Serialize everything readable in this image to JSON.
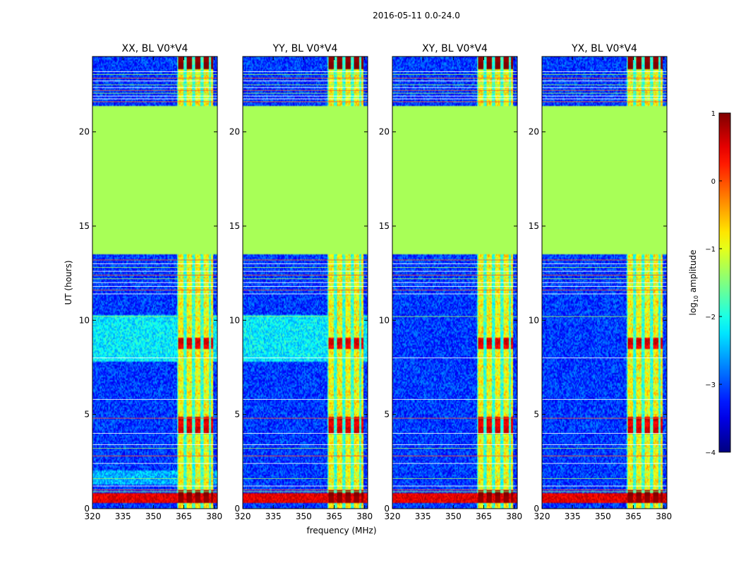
{
  "figure": {
    "suptitle": "2016-05-11 0.0-24.0",
    "ylabel": "UT (hours)",
    "xlabel": "frequency (MHz)"
  },
  "chart_data": {
    "type": "heatmap",
    "title": "2016-05-11 0.0-24.0",
    "xlabel": "frequency (MHz)",
    "ylabel": "UT (hours)",
    "xlim": [
      320,
      381.5
    ],
    "ylim": [
      0,
      24
    ],
    "x_ticks": [
      320,
      335,
      350,
      365,
      380
    ],
    "y_ticks": [
      0,
      5,
      10,
      15,
      20
    ],
    "panels": [
      {
        "title": "XX, BL V0*V4",
        "pol": "XX"
      },
      {
        "title": "YY, BL V0*V4",
        "pol": "YY"
      },
      {
        "title": "XY, BL V0*V4",
        "pol": "XY"
      },
      {
        "title": "YX, BL V0*V4",
        "pol": "YX"
      }
    ],
    "colorbar": {
      "label": "log10 amplitude",
      "label_main": "log",
      "label_sub": "10",
      "label_tail": " amplitude",
      "range": [
        -4,
        1
      ],
      "ticks": [
        {
          "value": 1,
          "label": "1"
        },
        {
          "value": 0,
          "label": "0"
        },
        {
          "value": -1,
          "label": "−1"
        },
        {
          "value": -2,
          "label": "−2"
        },
        {
          "value": -3,
          "label": "−3"
        },
        {
          "value": -4,
          "label": "−4"
        }
      ],
      "colormap": "jet"
    },
    "flagged_time_range_hours": [
      13.5,
      21.4
    ],
    "flagged_value": -1.3,
    "rfi_frequency_band_mhz": [
      361.5,
      379.5
    ]
  }
}
